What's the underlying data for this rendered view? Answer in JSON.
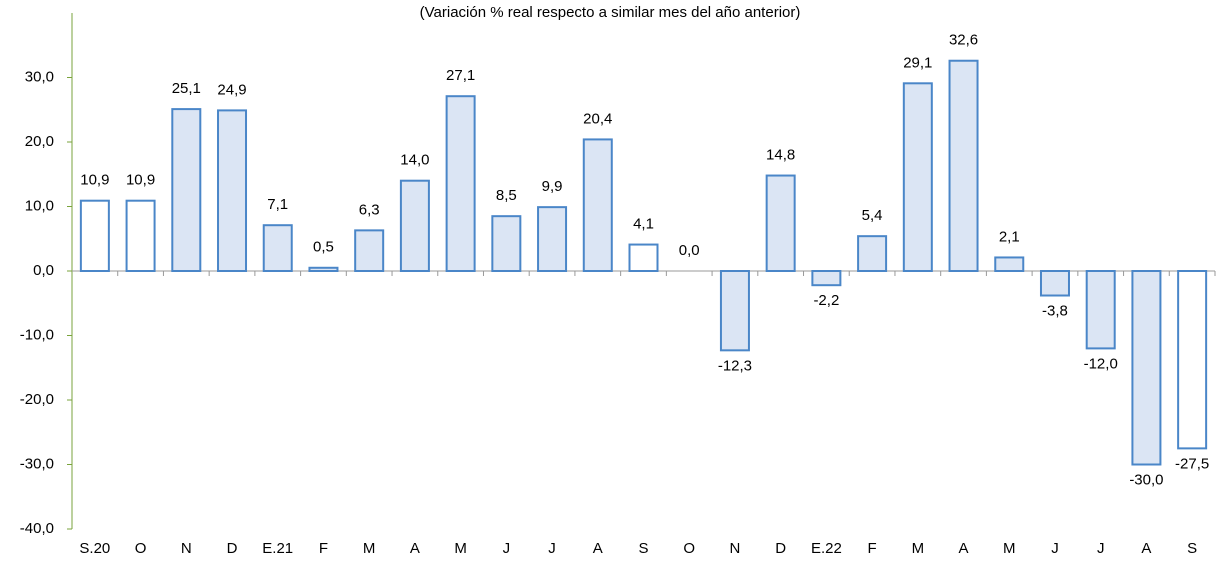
{
  "chart_data": {
    "type": "bar",
    "subtitle": "(Variación % real respecto a similar mes del año anterior)",
    "categories": [
      "S.20",
      "O",
      "N",
      "D",
      "E.21",
      "F",
      "M",
      "A",
      "M",
      "J",
      "J",
      "A",
      "S",
      "O",
      "N",
      "D",
      "E.22",
      "F",
      "M",
      "A",
      "M",
      "J",
      "J",
      "A",
      "S"
    ],
    "values": [
      10.9,
      10.9,
      25.1,
      24.9,
      7.1,
      0.5,
      6.3,
      14.0,
      27.1,
      8.5,
      9.9,
      20.4,
      4.1,
      0.0,
      -12.3,
      14.8,
      -2.2,
      5.4,
      29.1,
      32.6,
      2.1,
      -3.8,
      -12.0,
      -30.0,
      -27.5
    ],
    "value_labels": [
      "10,9",
      "10,9",
      "25,1",
      "24,9",
      "7,1",
      "0,5",
      "6,3",
      "14,0",
      "27,1",
      "8,5",
      "9,9",
      "20,4",
      "4,1",
      "0,0",
      "-12,3",
      "14,8",
      "-2,2",
      "5,4",
      "29,1",
      "32,6",
      "2,1",
      "-3,8",
      "-12,0",
      "-30,0",
      "-27,5"
    ],
    "colors": [
      "#ffffff",
      "#ffffff",
      "#dbe5f4",
      "#dbe5f4",
      "#dbe5f4",
      "#dbe5f4",
      "#dbe5f4",
      "#dbe5f4",
      "#dbe5f4",
      "#dbe5f4",
      "#dbe5f4",
      "#dbe5f4",
      "#ffffff",
      "#ffffff",
      "#dbe5f4",
      "#dbe5f4",
      "#dbe5f4",
      "#dbe5f4",
      "#dbe5f4",
      "#dbe5f4",
      "#dbe5f4",
      "#dbe5f4",
      "#dbe5f4",
      "#dbe5f4",
      "#ffffff"
    ],
    "edge_color": "#4a86c8",
    "ylim": [
      -40,
      40
    ],
    "yticks": [
      {
        "value": -40,
        "label": "-40,0"
      },
      {
        "value": -30,
        "label": "-30,0"
      },
      {
        "value": -20,
        "label": "-20,0"
      },
      {
        "value": -10,
        "label": "-10,0"
      },
      {
        "value": 0,
        "label": "0,0"
      },
      {
        "value": 10,
        "label": "10,0"
      },
      {
        "value": 20,
        "label": "20,0"
      },
      {
        "value": 30,
        "label": "30,0"
      }
    ],
    "grid": false
  }
}
